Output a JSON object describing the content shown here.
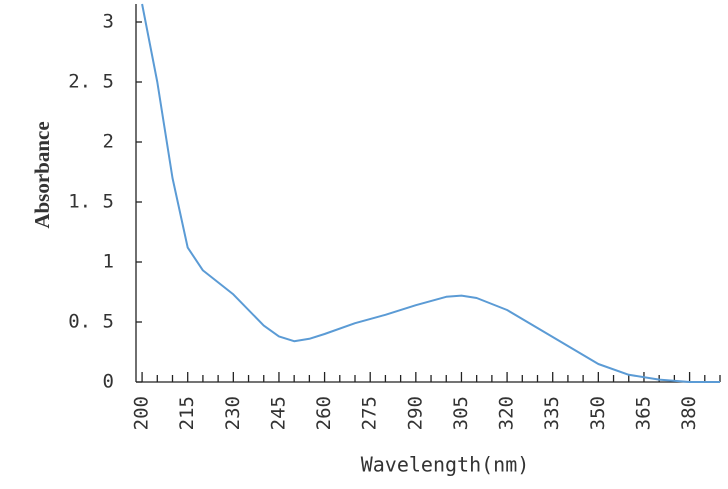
{
  "chart_data": {
    "type": "line",
    "x_label": "Wavelength(nm)",
    "y_label": "Absorbance",
    "x": [
      200,
      205,
      210,
      215,
      220,
      230,
      240,
      245,
      250,
      255,
      260,
      270,
      280,
      290,
      300,
      305,
      310,
      320,
      330,
      340,
      350,
      360,
      370,
      380,
      390
    ],
    "series": [
      {
        "color": "#5b9bd5",
        "values": [
          3.15,
          2.5,
          1.7,
          1.12,
          0.93,
          0.73,
          0.47,
          0.38,
          0.34,
          0.36,
          0.4,
          0.49,
          0.56,
          0.64,
          0.71,
          0.72,
          0.7,
          0.6,
          0.45,
          0.3,
          0.15,
          0.06,
          0.02,
          0.0,
          0.0
        ]
      }
    ],
    "xlim": [
      198,
      390
    ],
    "ylim": [
      0,
      3.15
    ],
    "xticks": [
      200,
      215,
      230,
      245,
      260,
      275,
      290,
      305,
      320,
      335,
      350,
      365,
      380
    ],
    "minor_xticks": [
      205,
      210,
      220,
      225,
      235,
      240,
      250,
      255,
      265,
      270,
      280,
      285,
      295,
      300,
      310,
      315,
      325,
      330,
      340,
      345,
      355,
      360,
      370,
      375,
      385,
      390
    ],
    "yticks": [
      0,
      {
        "value": 0.5,
        "label": "0. 5"
      },
      1,
      {
        "value": 1.5,
        "label": "1. 5"
      },
      2,
      {
        "value": 2.5,
        "label": "2. 5"
      },
      3
    ]
  }
}
